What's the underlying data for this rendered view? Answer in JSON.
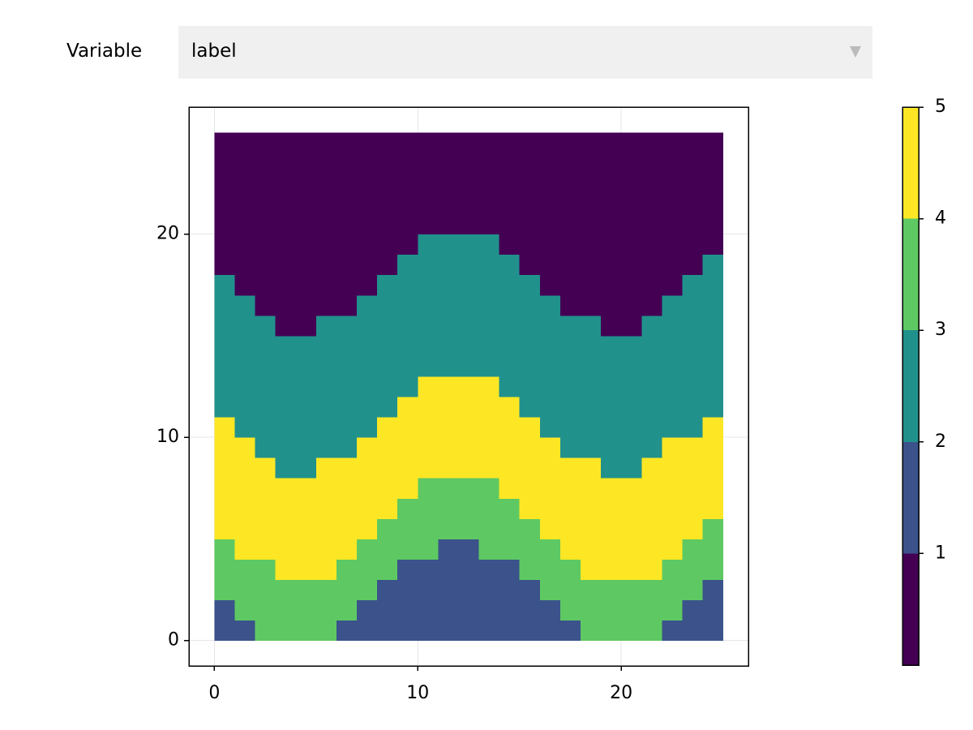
{
  "controls": {
    "label": "Variable",
    "selected": "label"
  },
  "chart_data": {
    "type": "heatmap",
    "colors": [
      "#440154",
      "#3b528b",
      "#21918c",
      "#5ec962",
      "#fde725"
    ],
    "color_bounds": [
      0,
      1,
      2,
      3,
      4,
      5
    ],
    "xlim": [
      -1.25,
      26.25
    ],
    "ylim": [
      -1.25,
      26.25
    ],
    "xticks": [
      0,
      10,
      20
    ],
    "yticks": [
      0,
      10,
      20
    ],
    "grid": true,
    "colorbar_lim": [
      0,
      5
    ],
    "colorbar_ticks": [
      1,
      2,
      3,
      4,
      5
    ],
    "z": [
      [
        1,
        1,
        3,
        3,
        3,
        3,
        1,
        1,
        1,
        1,
        1,
        1,
        1,
        1,
        1,
        1,
        1,
        1,
        3,
        3,
        3,
        3,
        1,
        1,
        1
      ],
      [
        1,
        3,
        3,
        3,
        3,
        3,
        3,
        1,
        1,
        1,
        1,
        1,
        1,
        1,
        1,
        1,
        1,
        3,
        3,
        3,
        3,
        3,
        3,
        1,
        1
      ],
      [
        3,
        3,
        3,
        3,
        3,
        3,
        3,
        3,
        1,
        1,
        1,
        1,
        1,
        1,
        1,
        1,
        3,
        3,
        3,
        3,
        3,
        3,
        3,
        3,
        1
      ],
      [
        3,
        3,
        3,
        4,
        4,
        4,
        3,
        3,
        3,
        1,
        1,
        1,
        1,
        1,
        1,
        3,
        3,
        3,
        4,
        4,
        4,
        4,
        3,
        3,
        3
      ],
      [
        3,
        4,
        4,
        4,
        4,
        4,
        4,
        3,
        3,
        3,
        3,
        1,
        1,
        3,
        3,
        3,
        3,
        4,
        4,
        4,
        4,
        4,
        4,
        3,
        3
      ],
      [
        4,
        4,
        4,
        4,
        4,
        4,
        4,
        4,
        3,
        3,
        3,
        3,
        3,
        3,
        3,
        3,
        4,
        4,
        4,
        4,
        4,
        4,
        4,
        4,
        3
      ],
      [
        4,
        4,
        4,
        4,
        4,
        4,
        4,
        4,
        4,
        3,
        3,
        3,
        3,
        3,
        3,
        4,
        4,
        4,
        4,
        4,
        4,
        4,
        4,
        4,
        4
      ],
      [
        4,
        4,
        4,
        4,
        4,
        4,
        4,
        4,
        4,
        4,
        3,
        3,
        3,
        3,
        4,
        4,
        4,
        4,
        4,
        4,
        4,
        4,
        4,
        4,
        4
      ],
      [
        4,
        4,
        4,
        2,
        2,
        4,
        4,
        4,
        4,
        4,
        4,
        4,
        4,
        4,
        4,
        4,
        4,
        4,
        4,
        2,
        2,
        4,
        4,
        4,
        4
      ],
      [
        4,
        4,
        2,
        2,
        2,
        2,
        2,
        4,
        4,
        4,
        4,
        4,
        4,
        4,
        4,
        4,
        4,
        2,
        2,
        2,
        2,
        2,
        4,
        4,
        4
      ],
      [
        4,
        2,
        2,
        2,
        2,
        2,
        2,
        2,
        4,
        4,
        4,
        4,
        4,
        4,
        4,
        4,
        2,
        2,
        2,
        2,
        2,
        2,
        2,
        2,
        4
      ],
      [
        2,
        2,
        2,
        2,
        2,
        2,
        2,
        2,
        2,
        4,
        4,
        4,
        4,
        4,
        4,
        2,
        2,
        2,
        2,
        2,
        2,
        2,
        2,
        2,
        2
      ],
      [
        2,
        2,
        2,
        2,
        2,
        2,
        2,
        2,
        2,
        2,
        4,
        4,
        4,
        4,
        2,
        2,
        2,
        2,
        2,
        2,
        2,
        2,
        2,
        2,
        2
      ],
      [
        2,
        2,
        2,
        2,
        2,
        2,
        2,
        2,
        2,
        2,
        2,
        2,
        2,
        2,
        2,
        2,
        2,
        2,
        2,
        2,
        2,
        2,
        2,
        2,
        2
      ],
      [
        2,
        2,
        2,
        2,
        2,
        2,
        2,
        2,
        2,
        2,
        2,
        2,
        2,
        2,
        2,
        2,
        2,
        2,
        2,
        2,
        2,
        2,
        2,
        2,
        2
      ],
      [
        2,
        2,
        2,
        0,
        0,
        2,
        2,
        2,
        2,
        2,
        2,
        2,
        2,
        2,
        2,
        2,
        2,
        2,
        2,
        0,
        0,
        2,
        2,
        2,
        2
      ],
      [
        2,
        2,
        0,
        0,
        0,
        0,
        0,
        2,
        2,
        2,
        2,
        2,
        2,
        2,
        2,
        2,
        2,
        0,
        0,
        0,
        0,
        0,
        2,
        2,
        2
      ],
      [
        2,
        0,
        0,
        0,
        0,
        0,
        0,
        0,
        2,
        2,
        2,
        2,
        2,
        2,
        2,
        2,
        0,
        0,
        0,
        0,
        0,
        0,
        0,
        2,
        2
      ],
      [
        0,
        0,
        0,
        0,
        0,
        0,
        0,
        0,
        0,
        2,
        2,
        2,
        2,
        2,
        2,
        0,
        0,
        0,
        0,
        0,
        0,
        0,
        0,
        0,
        2
      ],
      [
        0,
        0,
        0,
        0,
        0,
        0,
        0,
        0,
        0,
        0,
        2,
        2,
        2,
        2,
        0,
        0,
        0,
        0,
        0,
        0,
        0,
        0,
        0,
        0,
        0
      ],
      [
        0,
        0,
        0,
        0,
        0,
        0,
        0,
        0,
        0,
        0,
        0,
        0,
        0,
        0,
        0,
        0,
        0,
        0,
        0,
        0,
        0,
        0,
        0,
        0,
        0
      ],
      [
        0,
        0,
        0,
        0,
        0,
        0,
        0,
        0,
        0,
        0,
        0,
        0,
        0,
        0,
        0,
        0,
        0,
        0,
        0,
        0,
        0,
        0,
        0,
        0,
        0
      ],
      [
        0,
        0,
        0,
        0,
        0,
        0,
        0,
        0,
        0,
        0,
        0,
        0,
        0,
        0,
        0,
        0,
        0,
        0,
        0,
        0,
        0,
        0,
        0,
        0,
        0
      ],
      [
        0,
        0,
        0,
        0,
        0,
        0,
        0,
        0,
        0,
        0,
        0,
        0,
        0,
        0,
        0,
        0,
        0,
        0,
        0,
        0,
        0,
        0,
        0,
        0,
        0
      ],
      [
        0,
        0,
        0,
        0,
        0,
        0,
        0,
        0,
        0,
        0,
        0,
        0,
        0,
        0,
        0,
        0,
        0,
        0,
        0,
        0,
        0,
        0,
        0,
        0,
        0
      ]
    ]
  }
}
